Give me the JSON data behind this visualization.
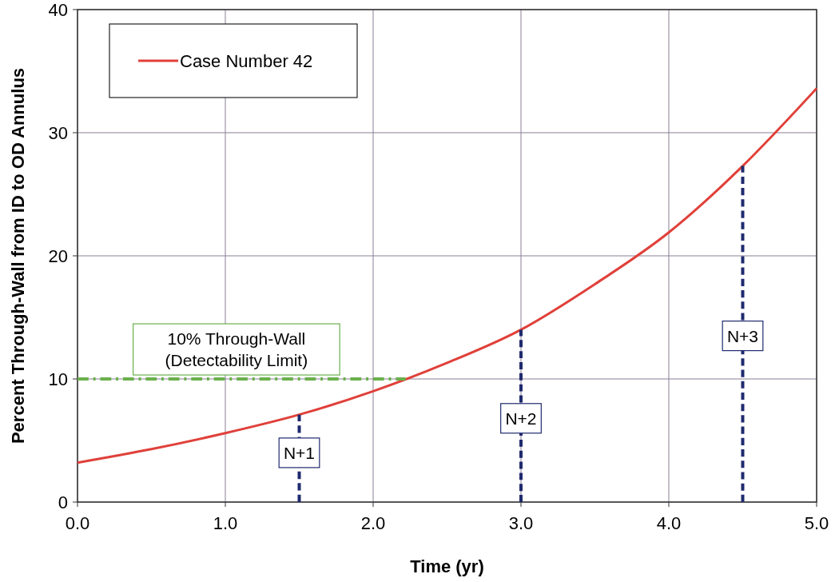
{
  "chart_data": {
    "type": "line",
    "xlabel": "Time (yr)",
    "ylabel": "Percent Through-Wall from ID to OD Annulus",
    "xlim": [
      0,
      5
    ],
    "ylim": [
      0,
      40
    ],
    "xticks": [
      {
        "value": 0,
        "label": "0.0"
      },
      {
        "value": 1,
        "label": "1.0"
      },
      {
        "value": 2,
        "label": "2.0"
      },
      {
        "value": 3,
        "label": "3.0"
      },
      {
        "value": 4,
        "label": "4.0"
      },
      {
        "value": 5,
        "label": "5.0"
      }
    ],
    "yticks": [
      0,
      10,
      20,
      30,
      40
    ],
    "grid": true,
    "legend": "top left",
    "series": [
      {
        "name": "Case Number 42",
        "color": "#e0403a",
        "line_style": "solid",
        "x": [
          0,
          0.5,
          1,
          1.5,
          2,
          2.5,
          3,
          3.5,
          4,
          4.5,
          5
        ],
        "values": [
          3.2,
          4.3,
          5.6,
          7.1,
          9.0,
          11.3,
          14.0,
          17.7,
          21.9,
          27.3,
          33.6
        ]
      },
      {
        "color": "#6ab04c",
        "line_style": "dashdot",
        "x": [
          0,
          2.22
        ],
        "values": [
          10,
          10
        ]
      },
      {
        "color": "#1f2a6e",
        "line_style": "dashed",
        "x": [
          1.5,
          1.5
        ],
        "values": [
          0,
          7.1
        ]
      },
      {
        "color": "#1f2a6e",
        "line_style": "dashed",
        "x": [
          3,
          3
        ],
        "values": [
          0,
          14.0
        ]
      },
      {
        "color": "#1f2a6e",
        "line_style": "dashed",
        "x": [
          4.5,
          4.5
        ],
        "values": [
          0,
          27.3
        ]
      }
    ],
    "annotations": [
      "10% Through-Wall\n(Detectability Limit)",
      {
        "text": "N+1",
        "x": 1.5,
        "y": 4
      },
      {
        "text": "N+2",
        "x": 3,
        "y": 6.8
      },
      {
        "text": "N+3",
        "x": 4.5,
        "y": 13.5
      }
    ]
  }
}
